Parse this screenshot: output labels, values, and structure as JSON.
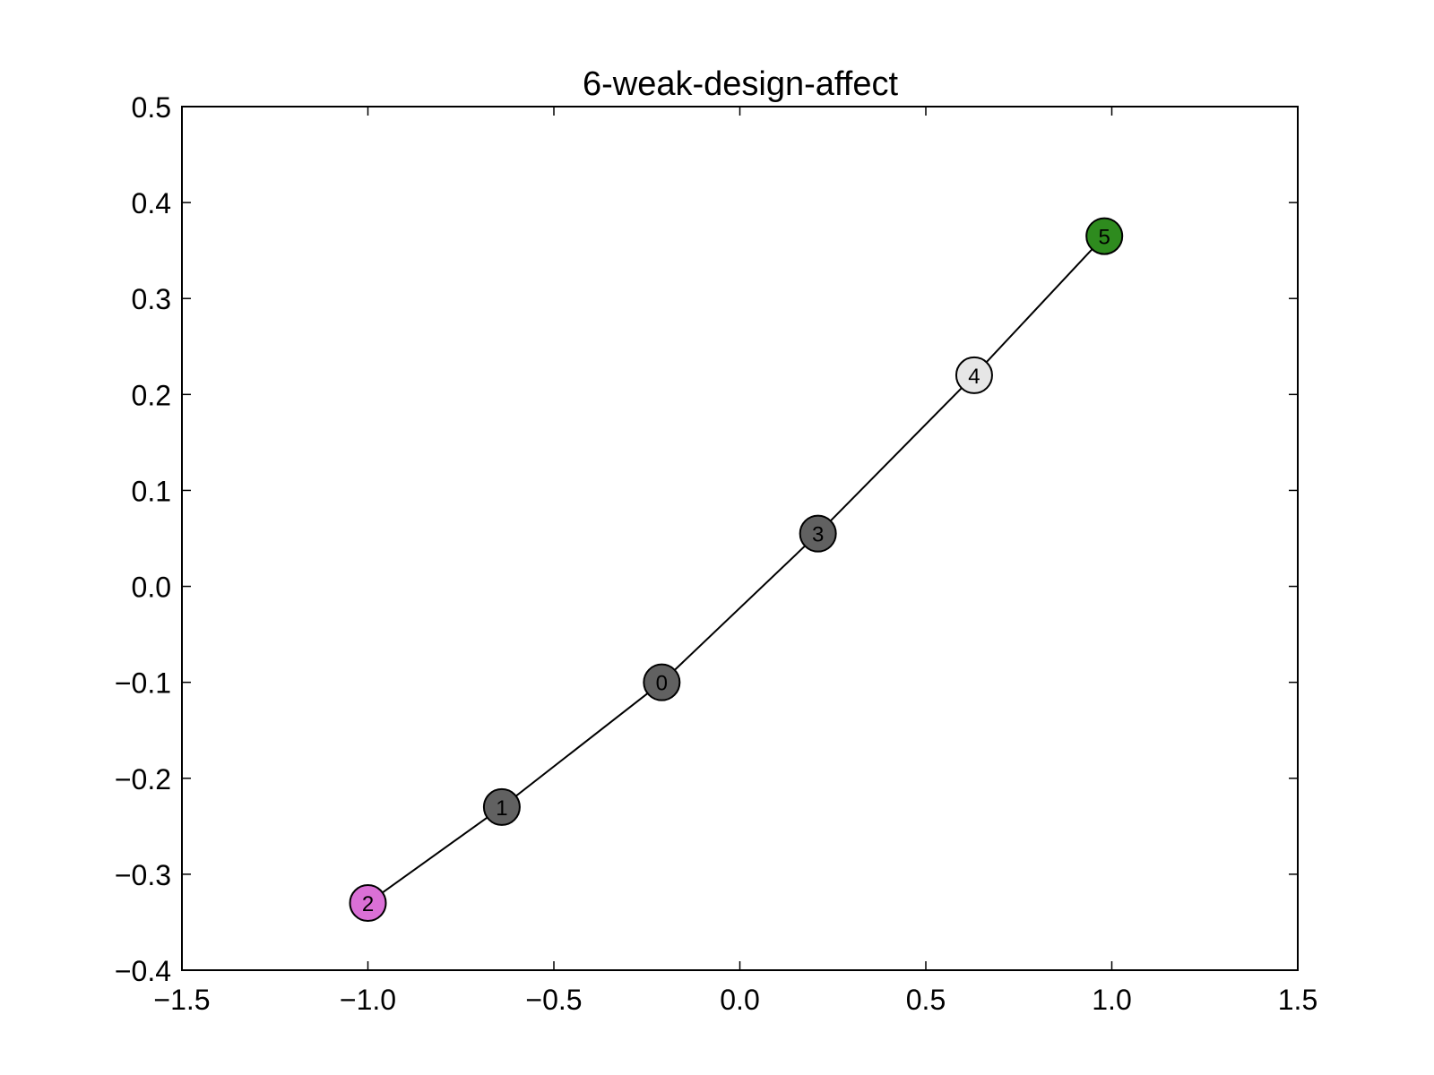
{
  "chart_data": {
    "type": "scatter",
    "title": "6-weak-design-affect",
    "xlabel": "",
    "ylabel": "",
    "xlim": [
      -1.5,
      1.5
    ],
    "ylim": [
      -0.4,
      0.5
    ],
    "xticks": [
      -1.5,
      -1.0,
      -0.5,
      0.0,
      0.5,
      1.0,
      1.5
    ],
    "xtick_labels": [
      "−1.5",
      "−1.0",
      "−0.5",
      "0.0",
      "0.5",
      "1.0",
      "1.5"
    ],
    "yticks": [
      -0.4,
      -0.3,
      -0.2,
      -0.1,
      0.0,
      0.1,
      0.2,
      0.3,
      0.4,
      0.5
    ],
    "ytick_labels": [
      "−0.4",
      "−0.3",
      "−0.2",
      "−0.1",
      "0.0",
      "0.1",
      "0.2",
      "0.3",
      "0.4",
      "0.5"
    ],
    "grid": false,
    "nodes": [
      {
        "label": "2",
        "x": -1.0,
        "y": -0.33,
        "color": "#da70d6"
      },
      {
        "label": "1",
        "x": -0.64,
        "y": -0.23,
        "color": "#616161"
      },
      {
        "label": "0",
        "x": -0.21,
        "y": -0.1,
        "color": "#616161"
      },
      {
        "label": "3",
        "x": 0.21,
        "y": 0.055,
        "color": "#616161"
      },
      {
        "label": "4",
        "x": 0.63,
        "y": 0.22,
        "color": "#e6e6e6"
      },
      {
        "label": "5",
        "x": 0.98,
        "y": 0.365,
        "color": "#2e8b1e"
      }
    ],
    "edges": [
      [
        "2",
        "1"
      ],
      [
        "1",
        "0"
      ],
      [
        "0",
        "3"
      ],
      [
        "3",
        "4"
      ],
      [
        "4",
        "5"
      ]
    ]
  }
}
